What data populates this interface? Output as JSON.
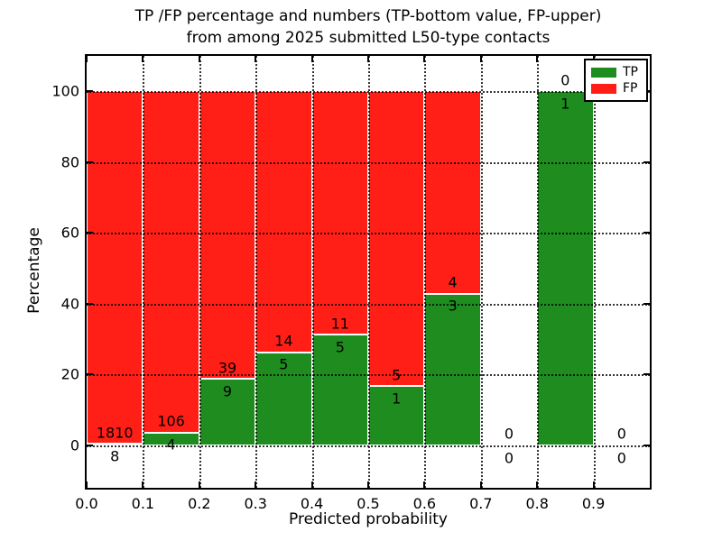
{
  "figure": {
    "title_line1": "TP /FP percentage and numbers (TP-bottom value, FP-upper)",
    "title_line2": "from among 2025 submitted L50-type contacts"
  },
  "chart_data": {
    "type": "bar",
    "subtype": "stacked-percentage-histogram",
    "title": "TP /FP percentage and numbers (TP-bottom value, FP-upper) from among 2025 submitted L50-type contacts",
    "xlabel": "Predicted probability",
    "ylabel": "Percentage",
    "xlim": [
      0.0,
      1.0
    ],
    "ylim": [
      -12,
      110
    ],
    "grid": "dotted",
    "bin_edges": [
      0.0,
      0.1,
      0.2,
      0.3,
      0.4,
      0.5,
      0.6,
      0.7,
      0.8,
      0.9,
      1.0
    ],
    "xtick_values": [
      0.0,
      0.1,
      0.2,
      0.3,
      0.4,
      0.5,
      0.6,
      0.7,
      0.8,
      0.9
    ],
    "xtick_labels": [
      "0.0",
      "0.1",
      "0.2",
      "0.3",
      "0.4",
      "0.5",
      "0.6",
      "0.7",
      "0.8",
      "0.9"
    ],
    "ytick_values": [
      0,
      20,
      40,
      60,
      80,
      100
    ],
    "ytick_labels": [
      "0",
      "20",
      "40",
      "60",
      "80",
      "100"
    ],
    "series": [
      {
        "name": "TP",
        "role": "bottom",
        "values": [
          8,
          4,
          9,
          5,
          5,
          1,
          3,
          0,
          1,
          0
        ]
      },
      {
        "name": "FP",
        "role": "upper",
        "values": [
          1810,
          106,
          39,
          14,
          11,
          5,
          4,
          0,
          0,
          0
        ]
      }
    ],
    "tp_percent_by_bin": [
      0.44,
      3.64,
      18.75,
      26.32,
      31.25,
      16.67,
      42.86,
      null,
      100.0,
      null
    ],
    "legend": {
      "position": "upper right",
      "items": [
        {
          "label": "TP",
          "color": "#1e8c1e"
        },
        {
          "label": "FP",
          "color": "#ff1f17"
        }
      ]
    }
  },
  "colors": {
    "tp": "#1e8c1e",
    "fp": "#ff1f17",
    "background": "#ffffff",
    "text": "#000000",
    "grid": "#000000",
    "bar_edge": "#ffffff"
  }
}
